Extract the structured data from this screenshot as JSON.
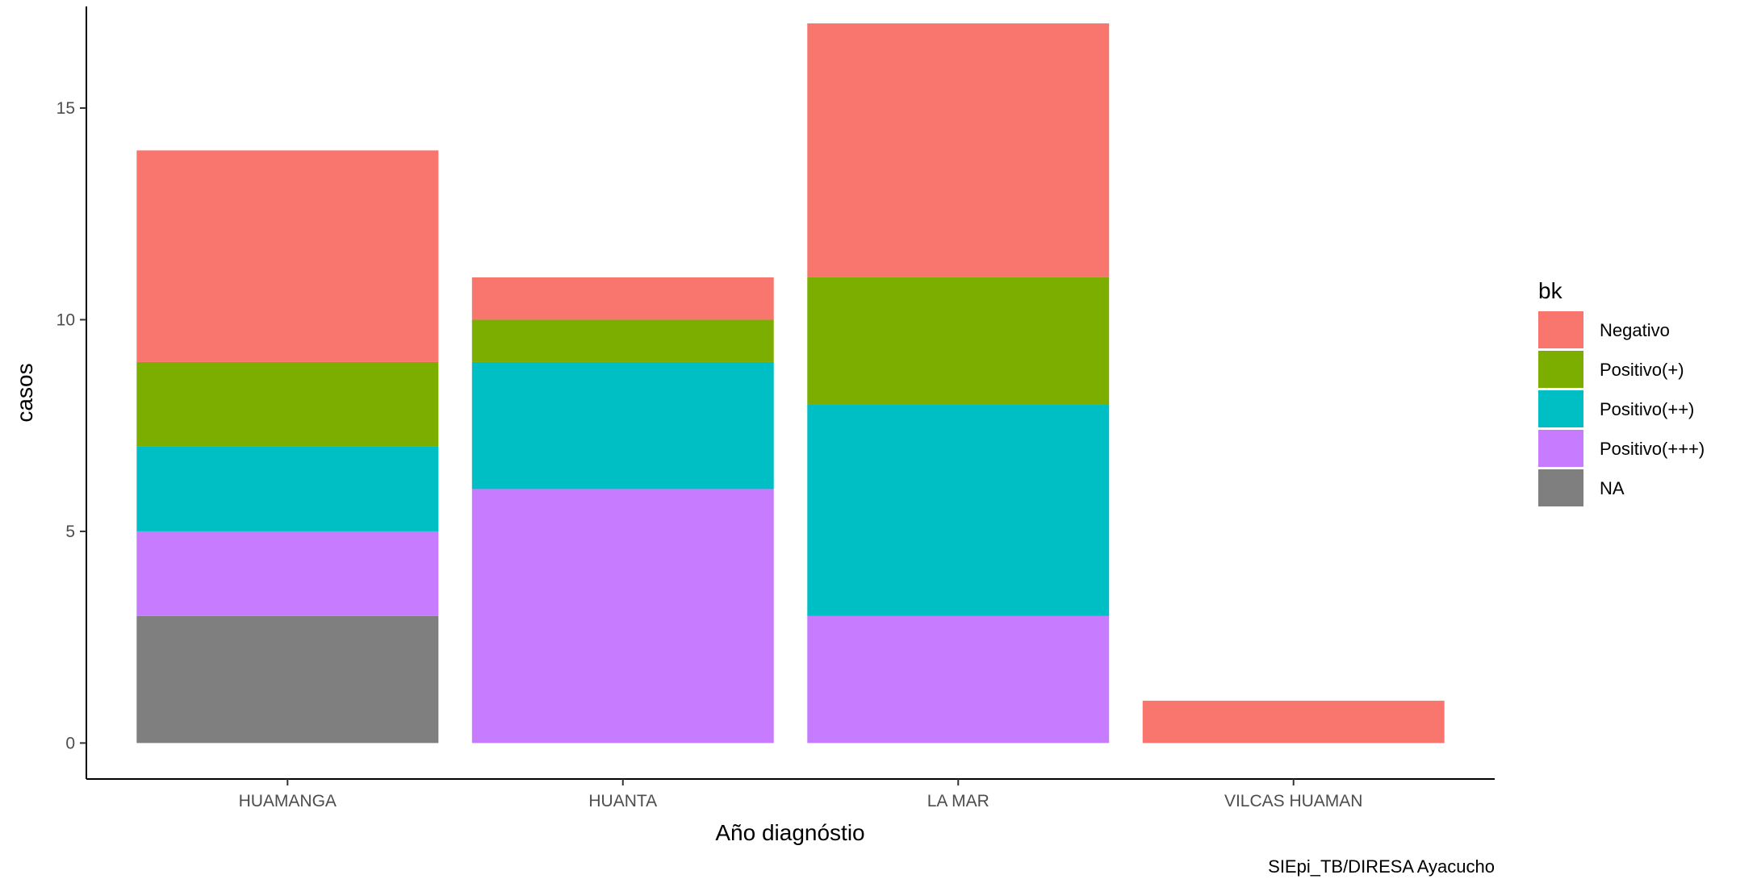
{
  "chart_data": {
    "type": "bar",
    "stacked": true,
    "title": "",
    "xlabel": "Año diagnóstio",
    "ylabel": "casos",
    "caption": "SIEpi_TB/DIRESA Ayacucho",
    "categories": [
      "HUAMANGA",
      "HUANTA",
      "LA MAR",
      "VILCAS HUAMAN"
    ],
    "ylim": [
      -0.85,
      17.4
    ],
    "yticks": [
      0,
      5,
      10,
      15
    ],
    "grid": false,
    "legend": {
      "title": "bk",
      "position": "right"
    },
    "series": [
      {
        "name": "NA",
        "color": "#7f7f7f",
        "values": [
          3,
          0,
          0,
          0
        ]
      },
      {
        "name": "Positivo(+++)",
        "color": "#c77cff",
        "values": [
          2,
          6,
          3,
          0
        ]
      },
      {
        "name": "Positivo(++)",
        "color": "#00bfc4",
        "values": [
          2,
          3,
          5,
          0
        ]
      },
      {
        "name": "Positivo(+)",
        "color": "#7cae00",
        "values": [
          2,
          1,
          3,
          0
        ]
      },
      {
        "name": "Negativo",
        "color": "#f8766d",
        "values": [
          5,
          1,
          6,
          1
        ]
      }
    ],
    "legend_order": [
      "Negativo",
      "Positivo(+)",
      "Positivo(++)",
      "Positivo(+++)",
      "NA"
    ]
  }
}
